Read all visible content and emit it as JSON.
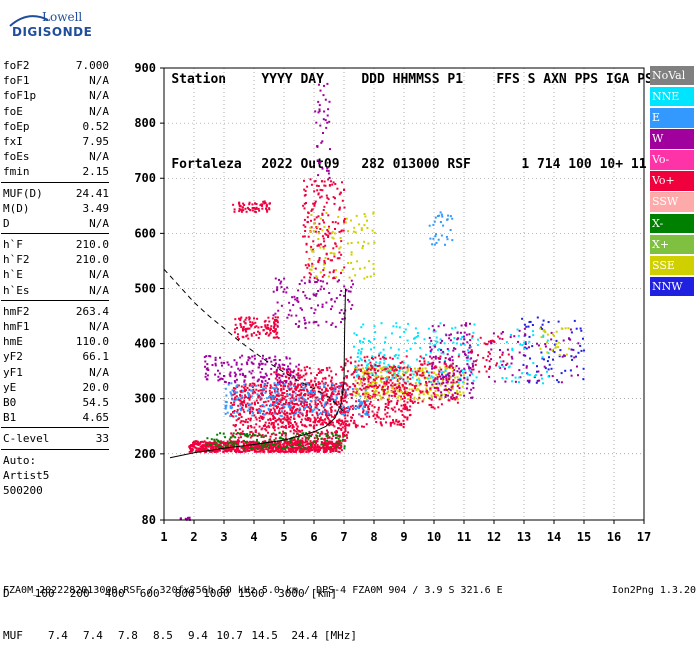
{
  "logo": {
    "line1": "Lowell",
    "line2": "DIGISONDE"
  },
  "header": {
    "labels": [
      "Station",
      "YYYY DAY",
      "DDD HHMMSS P1",
      "FFS S AXN PPS IGA PS"
    ],
    "values": [
      "Fortaleza",
      "2022 Out09",
      "282 013000 RSF",
      "1 714 100 10+ 11"
    ]
  },
  "params": {
    "group1": [
      {
        "k": "foF2",
        "v": "7.000"
      },
      {
        "k": "foF1",
        "v": "N/A"
      },
      {
        "k": "foF1p",
        "v": "N/A"
      },
      {
        "k": "foE",
        "v": "N/A"
      },
      {
        "k": "foEp",
        "v": "0.52"
      },
      {
        "k": "fxI",
        "v": "7.95"
      },
      {
        "k": "foEs",
        "v": "N/A"
      },
      {
        "k": "fmin",
        "v": "2.15"
      }
    ],
    "group2": [
      {
        "k": "MUF(D)",
        "v": "24.41"
      },
      {
        "k": "M(D)",
        "v": "3.49"
      },
      {
        "k": "D",
        "v": "N/A"
      }
    ],
    "group3": [
      {
        "k": "h`F",
        "v": "210.0"
      },
      {
        "k": "h`F2",
        "v": "210.0"
      },
      {
        "k": "h`E",
        "v": "N/A"
      },
      {
        "k": "h`Es",
        "v": "N/A"
      }
    ],
    "group4": [
      {
        "k": "hmF2",
        "v": "263.4"
      },
      {
        "k": "hmF1",
        "v": "N/A"
      },
      {
        "k": "hmE",
        "v": "110.0"
      },
      {
        "k": "yF2",
        "v": "66.1"
      },
      {
        "k": "yF1",
        "v": "N/A"
      },
      {
        "k": "yE",
        "v": "20.0"
      },
      {
        "k": "B0",
        "v": "54.5"
      },
      {
        "k": "B1",
        "v": "4.65"
      }
    ],
    "group5": [
      {
        "k": "C-level",
        "v": "33"
      }
    ],
    "group6": [
      "Auto:",
      "Artist5",
      "500200"
    ]
  },
  "legend": [
    {
      "label": "NoVal",
      "color": "#808080"
    },
    {
      "label": "NNE",
      "color": "#00e5ff"
    },
    {
      "label": "E",
      "color": "#3399ff"
    },
    {
      "label": "W",
      "color": "#a0009c"
    },
    {
      "label": "Vo-",
      "color": "#ff33a8"
    },
    {
      "label": "Vo+",
      "color": "#f0003c"
    },
    {
      "label": "SSW",
      "color": "#ffaaaa"
    },
    {
      "label": "X-",
      "color": "#008000"
    },
    {
      "label": "X+",
      "color": "#80c040"
    },
    {
      "label": "SSE",
      "color": "#d0d000"
    },
    {
      "label": "NNW",
      "color": "#2020e0"
    }
  ],
  "muf_table": {
    "d_label": "D",
    "d_values": [
      "100",
      "200",
      "400",
      "600",
      "800",
      "1000",
      "1500",
      "3000"
    ],
    "d_unit": "[km]",
    "m_label": "MUF",
    "m_values": [
      "7.4",
      "7.4",
      "7.8",
      "8.5",
      "9.4",
      "10.7",
      "14.5",
      "24.4"
    ],
    "m_unit": "[MHz]"
  },
  "footer": {
    "left": "FZA0M_2022282013000.RSF / 320fx256h 50 kHz 5.0 km / DPS-4 FZA0M 904 / 3.9 S 321.6 E",
    "right": "Ion2Png 1.3.20"
  },
  "chart_data": {
    "type": "scatter",
    "xlim": [
      1,
      17
    ],
    "ylim": [
      80,
      900
    ],
    "xticks": [
      1,
      2,
      3,
      4,
      5,
      6,
      7,
      8,
      9,
      10,
      11,
      12,
      13,
      14,
      15,
      16,
      17
    ],
    "yticks": [
      80,
      200,
      300,
      400,
      500,
      600,
      700,
      800,
      900
    ],
    "grid": true,
    "legend_position": "right",
    "dashed_profile": [
      [
        1.0,
        535
      ],
      [
        1.5,
        505
      ],
      [
        2.0,
        475
      ],
      [
        2.5,
        450
      ],
      [
        3.0,
        428
      ],
      [
        3.5,
        405
      ],
      [
        4.0,
        385
      ],
      [
        4.5,
        365
      ],
      [
        5.0,
        348
      ],
      [
        5.5,
        332
      ],
      [
        6.0,
        318
      ],
      [
        6.5,
        303
      ],
      [
        6.85,
        285
      ],
      [
        7.0,
        275
      ]
    ],
    "trace_curve": [
      [
        1.2,
        193
      ],
      [
        2.0,
        202
      ],
      [
        3.0,
        210
      ],
      [
        4.0,
        217
      ],
      [
        5.0,
        225
      ],
      [
        5.5,
        232
      ],
      [
        6.0,
        240
      ],
      [
        6.4,
        250
      ],
      [
        6.7,
        265
      ],
      [
        6.9,
        290
      ],
      [
        7.0,
        330
      ],
      [
        7.02,
        420
      ],
      [
        7.05,
        500
      ]
    ],
    "echo_clusters": [
      {
        "color": "#f0003c",
        "x": [
          1.8,
          6.9
        ],
        "y": [
          205,
          225
        ],
        "n": 900
      },
      {
        "color": "#f0003c",
        "x": [
          3.2,
          7.1
        ],
        "y": [
          225,
          330
        ],
        "n": 700
      },
      {
        "color": "#008000",
        "x": [
          2.4,
          7.0
        ],
        "y": [
          210,
          240
        ],
        "n": 150
      },
      {
        "color": "#f0003c",
        "x": [
          4.5,
          9.2
        ],
        "y": [
          250,
          360
        ],
        "n": 600
      },
      {
        "color": "#a0009c",
        "x": [
          4.6,
          7.3
        ],
        "y": [
          430,
          520
        ],
        "n": 120
      },
      {
        "color": "#a0009c",
        "x": [
          2.3,
          5.5
        ],
        "y": [
          330,
          380
        ],
        "n": 160
      },
      {
        "color": "#3399ff",
        "x": [
          3.0,
          7.8
        ],
        "y": [
          270,
          330
        ],
        "n": 220
      },
      {
        "color": "#f0003c",
        "x": [
          3.3,
          4.8
        ],
        "y": [
          410,
          450
        ],
        "n": 110
      },
      {
        "color": "#d0d000",
        "x": [
          7.3,
          11.0
        ],
        "y": [
          300,
          360
        ],
        "n": 260
      },
      {
        "color": "#00e5ff",
        "x": [
          7.3,
          11.5
        ],
        "y": [
          330,
          440
        ],
        "n": 200
      },
      {
        "color": "#a0009c",
        "x": [
          9.8,
          11.3
        ],
        "y": [
          300,
          440
        ],
        "n": 160
      },
      {
        "color": "#f0003c",
        "x": [
          7.0,
          10.8
        ],
        "y": [
          280,
          380
        ],
        "n": 250
      },
      {
        "color": "#f0003c",
        "x": [
          3.2,
          4.5
        ],
        "y": [
          640,
          660
        ],
        "n": 60
      },
      {
        "color": "#f0003c",
        "x": [
          5.6,
          7.0
        ],
        "y": [
          520,
          700
        ],
        "n": 180
      },
      {
        "color": "#d0d000",
        "x": [
          5.8,
          8.0
        ],
        "y": [
          520,
          640
        ],
        "n": 90
      },
      {
        "color": "#2020e0",
        "x": [
          12.9,
          15.0
        ],
        "y": [
          330,
          450
        ],
        "n": 70
      },
      {
        "color": "#a0009c",
        "x": [
          11.8,
          14.8
        ],
        "y": [
          330,
          430
        ],
        "n": 70
      },
      {
        "color": "#00e5ff",
        "x": [
          12.0,
          13.8
        ],
        "y": [
          320,
          430
        ],
        "n": 40
      },
      {
        "color": "#f0003c",
        "x": [
          11.2,
          12.5
        ],
        "y": [
          350,
          420
        ],
        "n": 35
      },
      {
        "color": "#d0d000",
        "x": [
          13.5,
          14.5
        ],
        "y": [
          380,
          430
        ],
        "n": 25
      },
      {
        "color": "#3399ff",
        "x": [
          9.8,
          10.6
        ],
        "y": [
          580,
          640
        ],
        "n": 30
      },
      {
        "color": "#a0009c",
        "x": [
          6.0,
          6.5
        ],
        "y": [
          700,
          880
        ],
        "n": 40
      },
      {
        "color": "#a0009c",
        "x": [
          1.5,
          1.9
        ],
        "y": [
          82,
          86
        ],
        "n": 12
      }
    ]
  }
}
